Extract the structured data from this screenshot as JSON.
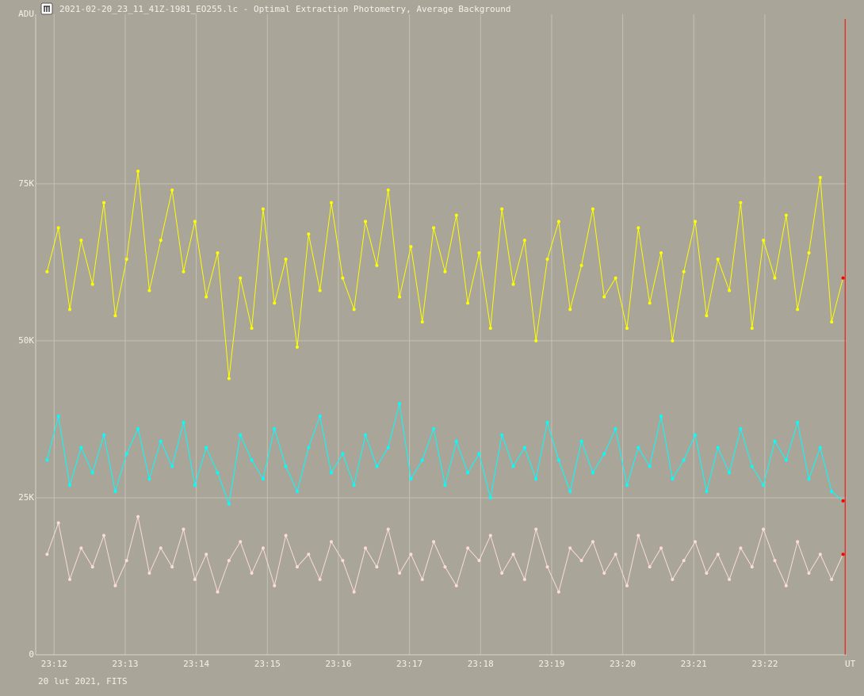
{
  "chart_data": {
    "type": "line",
    "title": "2021-02-20_23_11_41Z-1981_EO255.lc - Optimal Extraction Photometry, Average Background",
    "ylabel": "ADU",
    "xlabel": "UT",
    "footer": "20 lut 2021, FITS",
    "x": [
      11.9,
      12.06,
      12.22,
      12.38,
      12.54,
      12.7,
      12.86,
      13.02,
      13.18,
      13.34,
      13.5,
      13.66,
      13.82,
      13.98,
      14.14,
      14.3,
      14.46,
      14.62,
      14.78,
      14.94,
      15.1,
      15.26,
      15.42,
      15.58,
      15.74,
      15.9,
      16.06,
      16.22,
      16.38,
      16.54,
      16.7,
      16.86,
      17.02,
      17.18,
      17.34,
      17.5,
      17.66,
      17.82,
      17.98,
      18.14,
      18.3,
      18.46,
      18.62,
      18.78,
      18.94,
      19.1,
      19.26,
      19.42,
      19.58,
      19.74,
      19.9,
      20.06,
      20.22,
      20.38,
      20.54,
      20.7,
      20.86,
      21.02,
      21.18,
      21.34,
      21.5,
      21.66,
      21.82,
      21.98,
      22.14,
      22.3,
      22.46,
      22.62,
      22.78,
      22.94,
      23.1
    ],
    "series": [
      {
        "color": "#ffff00",
        "values": [
          61000,
          68000,
          55000,
          66000,
          59000,
          72000,
          54000,
          63000,
          77000,
          58000,
          66000,
          74000,
          61000,
          69000,
          57000,
          64000,
          44000,
          60000,
          52000,
          71000,
          56000,
          63000,
          49000,
          67000,
          58000,
          72000,
          60000,
          55000,
          69000,
          62000,
          74000,
          57000,
          65000,
          53000,
          68000,
          61000,
          70000,
          56000,
          64000,
          52000,
          71000,
          59000,
          66000,
          50000,
          63000,
          69000,
          55000,
          62000,
          71000,
          57000,
          60000,
          52000,
          68000,
          56000,
          64000,
          50000,
          61000,
          69000,
          54000,
          63000,
          58000,
          72000,
          52000,
          66000,
          60000,
          70000,
          55000,
          64000,
          76000,
          53000,
          60000
        ]
      },
      {
        "color": "#00ffff",
        "values": [
          31000,
          38000,
          27000,
          33000,
          29000,
          35000,
          26000,
          32000,
          36000,
          28000,
          34000,
          30000,
          37000,
          27000,
          33000,
          29000,
          24000,
          35000,
          31000,
          28000,
          36000,
          30000,
          26000,
          33000,
          38000,
          29000,
          32000,
          27000,
          35000,
          30000,
          33000,
          40000,
          28000,
          31000,
          36000,
          27000,
          34000,
          29000,
          32000,
          25000,
          35000,
          30000,
          33000,
          28000,
          37000,
          31000,
          26000,
          34000,
          29000,
          32000,
          36000,
          27000,
          33000,
          30000,
          38000,
          28000,
          31000,
          35000,
          26000,
          33000,
          29000,
          36000,
          30000,
          27000,
          34000,
          31000,
          37000,
          28000,
          33000,
          26000,
          24500
        ]
      },
      {
        "color": "#fcdcd4",
        "values": [
          16000,
          21000,
          12000,
          17000,
          14000,
          19000,
          11000,
          15000,
          22000,
          13000,
          17000,
          14000,
          20000,
          12000,
          16000,
          10000,
          15000,
          18000,
          13000,
          17000,
          11000,
          19000,
          14000,
          16000,
          12000,
          18000,
          15000,
          10000,
          17000,
          14000,
          20000,
          13000,
          16000,
          12000,
          18000,
          14000,
          11000,
          17000,
          15000,
          19000,
          13000,
          16000,
          12000,
          20000,
          14000,
          10000,
          17000,
          15000,
          18000,
          13000,
          16000,
          11000,
          19000,
          14000,
          17000,
          12000,
          15000,
          18000,
          13000,
          16000,
          12000,
          17000,
          14000,
          20000,
          15000,
          11000,
          18000,
          13000,
          16000,
          12000,
          16000
        ]
      }
    ],
    "xlim": [
      11.74,
      23.15
    ],
    "ylim": [
      0,
      102000
    ],
    "xticks": [
      {
        "value": 12,
        "label": "23:12"
      },
      {
        "value": 13,
        "label": "23:13"
      },
      {
        "value": 14,
        "label": "23:14"
      },
      {
        "value": 15,
        "label": "23:15"
      },
      {
        "value": 16,
        "label": "23:16"
      },
      {
        "value": 17,
        "label": "23:17"
      },
      {
        "value": 18,
        "label": "23:18"
      },
      {
        "value": 19,
        "label": "23:19"
      },
      {
        "value": 20,
        "label": "23:20"
      },
      {
        "value": 21,
        "label": "23:21"
      },
      {
        "value": 22,
        "label": "23:22"
      }
    ],
    "yticks": [
      0,
      {
        "value": 25000,
        "label": "25K"
      },
      {
        "value": 50000,
        "label": "50K"
      },
      {
        "value": 75000,
        "label": "75K"
      }
    ],
    "grid": true,
    "cursor_x": 23.13,
    "cursor_color": "#ff0000"
  }
}
